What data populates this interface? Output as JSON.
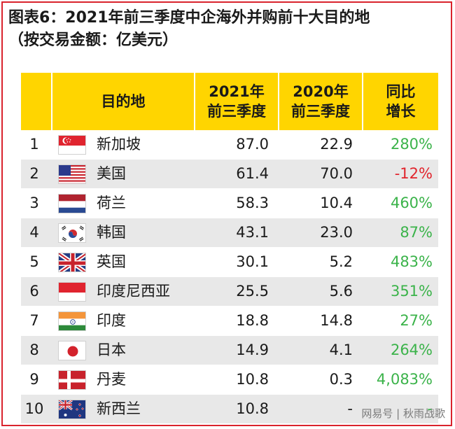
{
  "title": {
    "line1": "图表6：2021年前三季度中企海外并购前十大目的地",
    "line2": "（按交易金额：亿美元）"
  },
  "table": {
    "headers": {
      "destination": "目的地",
      "y2021_line1": "2021年",
      "y2021_line2": "前三季度",
      "y2020_line1": "2020年",
      "y2020_line2": "前三季度",
      "growth_line1": "同比",
      "growth_line2": "增长"
    },
    "rows": [
      {
        "rank": "1",
        "flag": "singapore-flag-icon",
        "name": "新加坡",
        "v2021": "87.0",
        "v2020": "22.9",
        "growth": "280%",
        "trend": "pos"
      },
      {
        "rank": "2",
        "flag": "usa-flag-icon",
        "name": "美国",
        "v2021": "61.4",
        "v2020": "70.0",
        "growth": "-12%",
        "trend": "neg"
      },
      {
        "rank": "3",
        "flag": "netherlands-flag-icon",
        "name": "荷兰",
        "v2021": "58.3",
        "v2020": "10.4",
        "growth": "460%",
        "trend": "pos"
      },
      {
        "rank": "4",
        "flag": "korea-flag-icon",
        "name": "韩国",
        "v2021": "43.1",
        "v2020": "23.0",
        "growth": "87%",
        "trend": "pos"
      },
      {
        "rank": "5",
        "flag": "uk-flag-icon",
        "name": "英国",
        "v2021": "30.1",
        "v2020": "5.2",
        "growth": "483%",
        "trend": "pos"
      },
      {
        "rank": "6",
        "flag": "indonesia-flag-icon",
        "name": "印度尼西亚",
        "v2021": "25.5",
        "v2020": "5.6",
        "growth": "351%",
        "trend": "pos"
      },
      {
        "rank": "7",
        "flag": "india-flag-icon",
        "name": "印度",
        "v2021": "18.8",
        "v2020": "14.8",
        "growth": "27%",
        "trend": "pos"
      },
      {
        "rank": "8",
        "flag": "japan-flag-icon",
        "name": "日本",
        "v2021": "14.9",
        "v2020": "4.1",
        "growth": "264%",
        "trend": "pos"
      },
      {
        "rank": "9",
        "flag": "denmark-flag-icon",
        "name": "丹麦",
        "v2021": "10.8",
        "v2020": "0.3",
        "growth": "4,083%",
        "trend": "pos"
      },
      {
        "rank": "10",
        "flag": "australia-flag-icon",
        "name": "新西兰",
        "v2021": "10.8",
        "v2020": "-",
        "growth": "-",
        "trend": "pos"
      }
    ]
  },
  "colors": {
    "header_bg": "#ffd500",
    "border": "#d9232d",
    "positive": "#3bb34a",
    "negative": "#e1242c",
    "stripe": "#e8e8e8"
  },
  "watermark": "网易号 | 秋雨战歌"
}
